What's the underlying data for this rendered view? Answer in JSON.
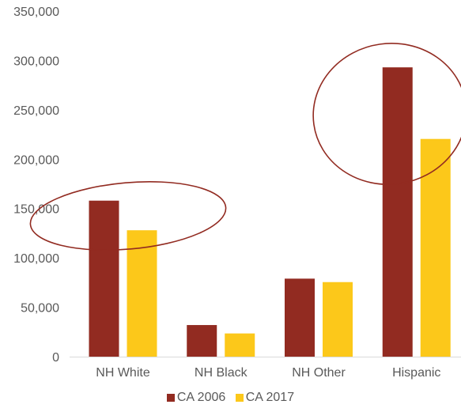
{
  "chart_data": {
    "type": "bar",
    "categories": [
      "NH White",
      "NH Black",
      "NH Other",
      "Hispanic"
    ],
    "series": [
      {
        "name": "CA 2006",
        "color": "#922b21",
        "values": [
          158000,
          32000,
          79000,
          293000
        ]
      },
      {
        "name": "CA 2017",
        "color": "#fcc81a",
        "values": [
          128000,
          23500,
          75500,
          220500
        ]
      }
    ],
    "ylim": [
      0,
      350000
    ],
    "y_ticks": [
      "0",
      "50,000",
      "100,000",
      "150,000",
      "200,000",
      "250,000",
      "300,000",
      "350,000"
    ],
    "y_tick_values": [
      0,
      50000,
      100000,
      150000,
      200000,
      250000,
      300000,
      350000
    ],
    "grid": false,
    "legend": "bottom",
    "annotations": [
      {
        "shape": "ellipse",
        "around": "NH White",
        "color": "#922b21"
      },
      {
        "shape": "ellipse",
        "around": "Hispanic",
        "color": "#922b21"
      }
    ]
  }
}
